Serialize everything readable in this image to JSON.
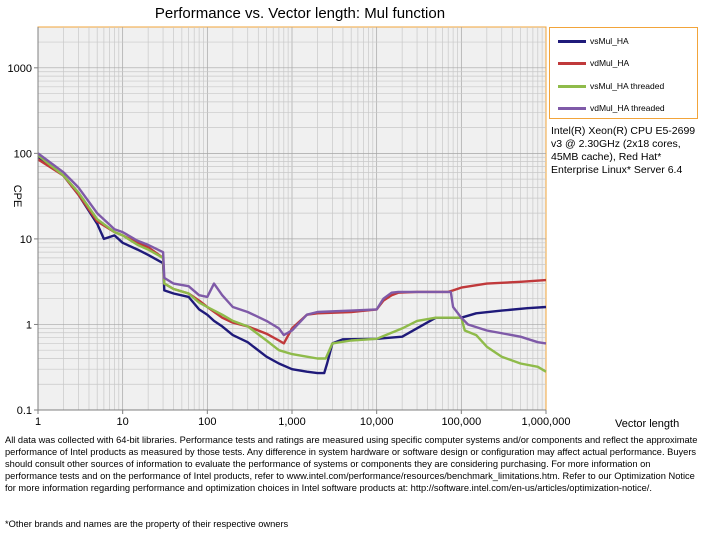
{
  "chart_data": {
    "type": "line",
    "title": "Performance vs. Vector length: Mul function",
    "xlabel": "Vector length",
    "ylabel": "CPE",
    "x_scale": "log",
    "y_scale": "log",
    "xlim": [
      1,
      1000000
    ],
    "ylim": [
      0.1,
      3000
    ],
    "x_ticks": [
      1,
      10,
      100,
      1000,
      10000,
      100000,
      1000000
    ],
    "x_tick_labels": [
      "1",
      "10",
      "100",
      "1,000",
      "10,000",
      "100,000",
      "1,000,000"
    ],
    "y_ticks": [
      0.1,
      1,
      10,
      100,
      1000
    ],
    "y_tick_labels": [
      "0.1",
      "1",
      "10",
      "100",
      "1000"
    ],
    "grid": true,
    "legend_position": "right",
    "series": [
      {
        "name": "vsMul_HA",
        "color": "#1f1a7a",
        "points": [
          [
            1,
            90
          ],
          [
            2,
            55
          ],
          [
            3,
            33
          ],
          [
            5,
            15
          ],
          [
            6,
            10
          ],
          [
            8,
            11
          ],
          [
            10,
            9
          ],
          [
            15,
            7.5
          ],
          [
            20,
            6.5
          ],
          [
            30,
            5.2
          ],
          [
            31,
            2.5
          ],
          [
            40,
            2.3
          ],
          [
            60,
            2.1
          ],
          [
            80,
            1.5
          ],
          [
            100,
            1.3
          ],
          [
            120,
            1.1
          ],
          [
            150,
            0.95
          ],
          [
            200,
            0.75
          ],
          [
            300,
            0.62
          ],
          [
            500,
            0.42
          ],
          [
            700,
            0.35
          ],
          [
            1000,
            0.3
          ],
          [
            1500,
            0.28
          ],
          [
            2000,
            0.27
          ],
          [
            2400,
            0.27
          ],
          [
            2600,
            0.35
          ],
          [
            3000,
            0.6
          ],
          [
            4000,
            0.67
          ],
          [
            10000,
            0.68
          ],
          [
            20000,
            0.72
          ],
          [
            50000,
            1.2
          ],
          [
            100000,
            1.2
          ],
          [
            150000,
            1.35
          ],
          [
            300000,
            1.45
          ],
          [
            600000,
            1.55
          ],
          [
            1000000,
            1.6
          ]
        ]
      },
      {
        "name": "vdMul_HA",
        "color": "#c0393b",
        "points": [
          [
            1,
            85
          ],
          [
            2,
            55
          ],
          [
            3,
            33
          ],
          [
            5,
            16
          ],
          [
            8,
            12
          ],
          [
            10,
            11
          ],
          [
            15,
            9
          ],
          [
            20,
            8
          ],
          [
            30,
            6
          ],
          [
            31,
            3
          ],
          [
            40,
            2.6
          ],
          [
            60,
            2.3
          ],
          [
            80,
            1.9
          ],
          [
            100,
            1.6
          ],
          [
            150,
            1.2
          ],
          [
            200,
            1.05
          ],
          [
            300,
            0.95
          ],
          [
            500,
            0.78
          ],
          [
            700,
            0.65
          ],
          [
            800,
            0.6
          ],
          [
            1000,
            0.9
          ],
          [
            1500,
            1.3
          ],
          [
            2000,
            1.35
          ],
          [
            5000,
            1.4
          ],
          [
            10000,
            1.5
          ],
          [
            12000,
            1.9
          ],
          [
            15000,
            2.2
          ],
          [
            18000,
            2.35
          ],
          [
            30000,
            2.4
          ],
          [
            70000,
            2.4
          ],
          [
            80000,
            2.5
          ],
          [
            100000,
            2.7
          ],
          [
            200000,
            3.0
          ],
          [
            500000,
            3.15
          ],
          [
            1000000,
            3.3
          ]
        ]
      },
      {
        "name": "vsMul_HA threaded",
        "color": "#8fbb4a",
        "points": [
          [
            1,
            95
          ],
          [
            2,
            55
          ],
          [
            3,
            35
          ],
          [
            5,
            17
          ],
          [
            8,
            12
          ],
          [
            10,
            11
          ],
          [
            15,
            8.5
          ],
          [
            20,
            7.5
          ],
          [
            30,
            6
          ],
          [
            31,
            3
          ],
          [
            40,
            2.6
          ],
          [
            60,
            2.3
          ],
          [
            80,
            1.8
          ],
          [
            100,
            1.6
          ],
          [
            150,
            1.3
          ],
          [
            200,
            1.1
          ],
          [
            300,
            0.95
          ],
          [
            500,
            0.65
          ],
          [
            700,
            0.5
          ],
          [
            1000,
            0.45
          ],
          [
            1500,
            0.42
          ],
          [
            2000,
            0.4
          ],
          [
            2500,
            0.4
          ],
          [
            3000,
            0.6
          ],
          [
            5000,
            0.65
          ],
          [
            10000,
            0.68
          ],
          [
            20000,
            0.9
          ],
          [
            30000,
            1.1
          ],
          [
            50000,
            1.2
          ],
          [
            100000,
            1.2
          ],
          [
            110000,
            0.85
          ],
          [
            150000,
            0.75
          ],
          [
            200000,
            0.55
          ],
          [
            300000,
            0.42
          ],
          [
            500000,
            0.35
          ],
          [
            800000,
            0.32
          ],
          [
            1000000,
            0.28
          ]
        ]
      },
      {
        "name": "vdMul_HA threaded",
        "color": "#7f5aa8",
        "points": [
          [
            1,
            100
          ],
          [
            2,
            60
          ],
          [
            3,
            40
          ],
          [
            5,
            20
          ],
          [
            8,
            13
          ],
          [
            10,
            12
          ],
          [
            15,
            9.5
          ],
          [
            20,
            8.5
          ],
          [
            30,
            7
          ],
          [
            31,
            3.5
          ],
          [
            40,
            3
          ],
          [
            60,
            2.8
          ],
          [
            80,
            2.2
          ],
          [
            100,
            2.1
          ],
          [
            120,
            3.0
          ],
          [
            150,
            2.2
          ],
          [
            200,
            1.6
          ],
          [
            300,
            1.4
          ],
          [
            500,
            1.1
          ],
          [
            700,
            0.9
          ],
          [
            800,
            0.75
          ],
          [
            1000,
            0.85
          ],
          [
            1500,
            1.3
          ],
          [
            2000,
            1.4
          ],
          [
            5000,
            1.45
          ],
          [
            10000,
            1.5
          ],
          [
            12000,
            2.0
          ],
          [
            15000,
            2.35
          ],
          [
            18000,
            2.4
          ],
          [
            50000,
            2.4
          ],
          [
            75000,
            2.4
          ],
          [
            80000,
            1.6
          ],
          [
            100000,
            1.2
          ],
          [
            120000,
            1.0
          ],
          [
            200000,
            0.85
          ],
          [
            500000,
            0.72
          ],
          [
            800000,
            0.62
          ],
          [
            1000000,
            0.6
          ]
        ]
      }
    ]
  },
  "cpu_note": "Intel(R) Xeon(R) CPU E5-2699 v3 @ 2.30GHz (2x18 cores, 45MB cache), Red Hat* Enterprise Linux* Server 6.4",
  "footer_text": "All data was collected with 64-bit libraries. Performance tests and ratings are measured using specific computer systems and/or components and reflect the approximate performance of Intel products as measured by those tests. Any difference in system hardware or software design or configuration may affect actual performance. Buyers should consult other sources of information to evaluate the performance of systems or components they are considering purchasing. For more information on performance tests and on the performance of Intel products, refer to www.intel.com/performance/resources/benchmark_limitations.htm. Refer to our Optimization Notice for more information regarding performance and optimization choices in Intel software products at: http://software.intel.com/en-us/articles/optimization-notice/.",
  "footer_note": "*Other brands and names are the property of their respective owners"
}
